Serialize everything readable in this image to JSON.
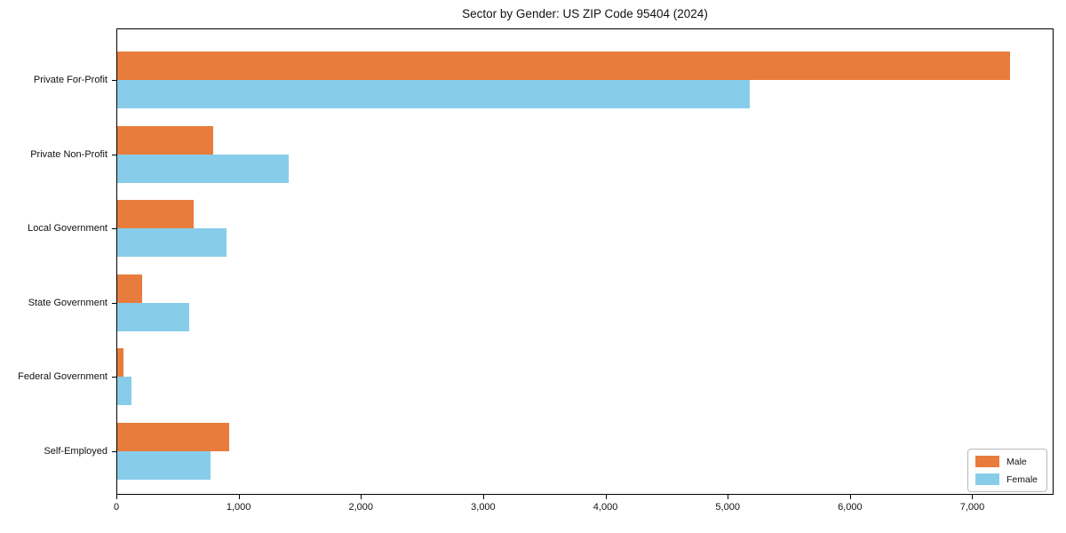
{
  "chart_data": {
    "type": "bar",
    "orientation": "horizontal",
    "title": "Sector by Gender: US ZIP Code 95404 (2024)",
    "categories": [
      "Private For-Profit",
      "Private Non-Profit",
      "Local Government",
      "State Government",
      "Federal Government",
      "Self-Employed"
    ],
    "series": [
      {
        "name": "Male",
        "color": "#e87c3c",
        "values": [
          7300,
          785,
          623,
          200,
          53,
          919
        ]
      },
      {
        "name": "Female",
        "color": "#87cde9",
        "values": [
          5170,
          1400,
          897,
          590,
          114,
          764
        ]
      }
    ],
    "xlabel": "",
    "ylabel": "",
    "xlim": [
      0,
      7665
    ],
    "xticks": [
      0,
      1000,
      2000,
      3000,
      4000,
      5000,
      6000,
      7000
    ],
    "xtick_labels": [
      "0",
      "1,000",
      "2,000",
      "3,000",
      "4,000",
      "5,000",
      "6,000",
      "7,000"
    ],
    "grid": false,
    "legend": {
      "position": "lower right",
      "entries": [
        "Male",
        "Female"
      ]
    }
  }
}
